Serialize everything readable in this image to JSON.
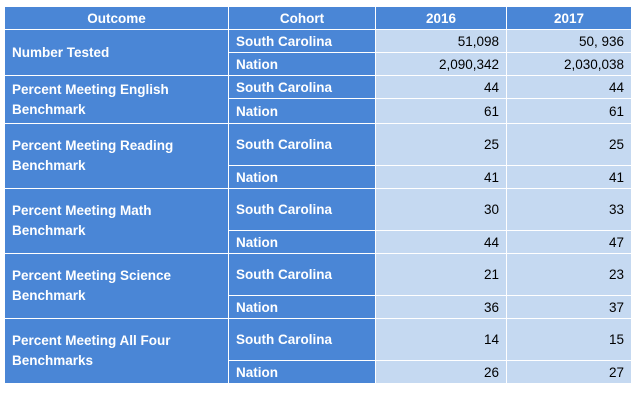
{
  "headers": [
    "Outcome",
    "Cohort",
    "2016",
    "2017"
  ],
  "rows": [
    {
      "outcome": "Number Tested",
      "cohorts": [
        {
          "cohort": "South Carolina",
          "y2016": "51,098",
          "y2017": "50, 936"
        },
        {
          "cohort": "Nation",
          "y2016": "2,090,342",
          "y2017": "2,030,038"
        }
      ]
    },
    {
      "outcome": "Percent Meeting English Benchmark",
      "cohorts": [
        {
          "cohort": "South Carolina",
          "y2016": "44",
          "y2017": "44"
        },
        {
          "cohort": "Nation",
          "y2016": "61",
          "y2017": "61"
        }
      ]
    },
    {
      "outcome": "Percent Meeting Reading Benchmark",
      "cohorts": [
        {
          "cohort": "South Carolina",
          "y2016": "25",
          "y2017": "25"
        },
        {
          "cohort": "Nation",
          "y2016": "41",
          "y2017": "41"
        }
      ]
    },
    {
      "outcome": "Percent Meeting Math Benchmark",
      "cohorts": [
        {
          "cohort": "South Carolina",
          "y2016": "30",
          "y2017": "33"
        },
        {
          "cohort": "Nation",
          "y2016": "44",
          "y2017": "47"
        }
      ]
    },
    {
      "outcome": "Percent Meeting  Science Benchmark",
      "cohorts": [
        {
          "cohort": "South Carolina",
          "y2016": "21",
          "y2017": "23"
        },
        {
          "cohort": "Nation",
          "y2016": "36",
          "y2017": "37"
        }
      ]
    },
    {
      "outcome": "Percent Meeting All Four Benchmarks",
      "cohorts": [
        {
          "cohort": "South Carolina",
          "y2016": "14",
          "y2017": "15"
        },
        {
          "cohort": "Nation",
          "y2016": "26",
          "y2017": "27"
        }
      ]
    }
  ]
}
